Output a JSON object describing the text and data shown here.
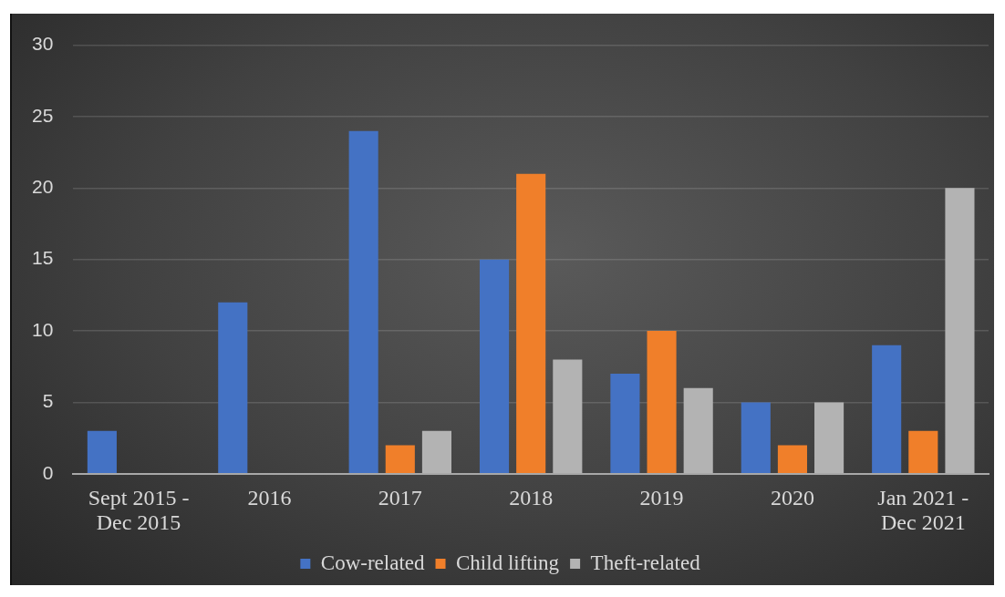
{
  "chart_data": {
    "type": "bar",
    "categories": [
      "Sept 2015 - Dec 2015",
      "2016",
      "2017",
      "2018",
      "2019",
      "2020",
      "Jan 2021 - Dec 2021"
    ],
    "series": [
      {
        "name": "Cow-related",
        "color": "#4472c4",
        "values": [
          3,
          12,
          24,
          15,
          7,
          5,
          9
        ]
      },
      {
        "name": "Child lifting",
        "color": "#f07f2a",
        "values": [
          null,
          null,
          2,
          21,
          10,
          2,
          3
        ]
      },
      {
        "name": "Theft-related",
        "color": "#b3b3b3",
        "values": [
          null,
          null,
          3,
          8,
          6,
          5,
          20
        ]
      }
    ],
    "ylim": [
      0,
      30
    ],
    "yticks": [
      0,
      5,
      10,
      15,
      20,
      25,
      30
    ],
    "grid": "y",
    "legend": "bottom"
  }
}
